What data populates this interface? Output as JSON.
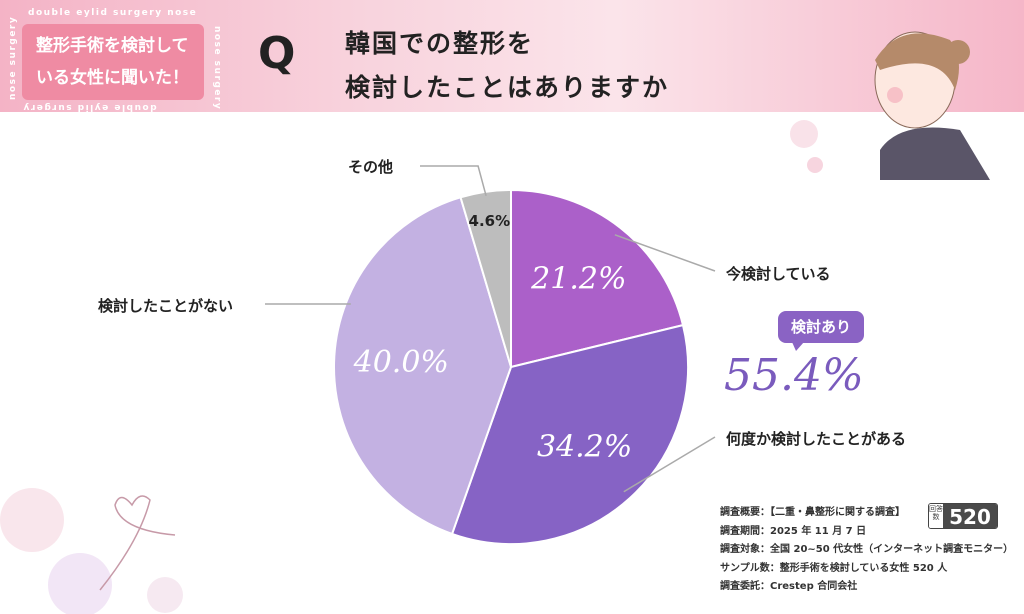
{
  "header": {
    "badge_lines": [
      "整形手術を検討して",
      "いる女性に聞いた！"
    ],
    "ring_text_top": "double eylid surgery   nose",
    "ring_text_side": "nose surgery",
    "ring_text_bottom": "double eylid surgery",
    "q_mark": "Q",
    "title_lines": [
      "韓国での整形を",
      "検討したことはありますか"
    ]
  },
  "chart_data": {
    "type": "pie",
    "start": "top",
    "direction": "clockwise",
    "slices": [
      {
        "label": "今検討している",
        "value": 21.2,
        "display": "21.2%",
        "color": "#ab60c9"
      },
      {
        "label": "何度か検討したことがある",
        "value": 34.2,
        "display": "34.2%",
        "color": "#8663c5"
      },
      {
        "label": "検討したことがない",
        "value": 40.0,
        "display": "40.0%",
        "color": "#c3b1e2"
      },
      {
        "label": "その他",
        "value": 4.6,
        "display": "4.6%",
        "color": "#bdbdbd"
      }
    ]
  },
  "summary": {
    "label": "検討あり",
    "value": "55.4%",
    "color": "#7a5bbd"
  },
  "survey": {
    "lines": [
      "調査概要：【二重・鼻整形に関する調査】",
      "調査期間：2025 年 11 月 7 日",
      "調査対象：全国 20~50 代女性（インターネット調査モニター）",
      "サンプル数：整形手術を検討している女性 520 人",
      "調査委託：Crestep 合同会社"
    ],
    "count_label": "回答数",
    "count": "520"
  }
}
